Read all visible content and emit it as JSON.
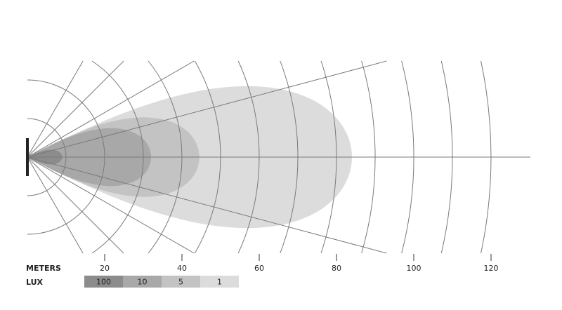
{
  "chart_data": {
    "type": "beam-pattern",
    "x_axis": {
      "label": "METERS",
      "ticks": [
        20,
        40,
        60,
        80,
        100,
        120
      ]
    },
    "grid": {
      "arc_step_m": 10,
      "arc_max_m": 120,
      "ray_angles_deg": [
        -60,
        -45,
        -30,
        -15,
        0,
        15,
        30,
        45,
        60
      ]
    },
    "legend": {
      "label": "LUX",
      "levels": [
        {
          "lux": "100",
          "color": "#8c8c8d"
        },
        {
          "lux": "10",
          "color": "#a8a8a9"
        },
        {
          "lux": "5",
          "color": "#c3c3c4"
        },
        {
          "lux": "1",
          "color": "#dcdcdd"
        }
      ]
    },
    "beams": [
      {
        "lux": "1",
        "reach_m": 84,
        "half_width_m": 18.4,
        "color": "#dcdcdd"
      },
      {
        "lux": "5",
        "reach_m": 44.5,
        "half_width_m": 10.3,
        "color": "#c3c3c4"
      },
      {
        "lux": "10",
        "reach_m": 32,
        "half_width_m": 7.5,
        "color": "#a8a8a9"
      },
      {
        "lux": "100",
        "reach_m": 9,
        "half_width_m": 1.9,
        "color": "#8c8c8d"
      }
    ],
    "line_color": "#7a7a7a",
    "source_color": "#222222"
  }
}
